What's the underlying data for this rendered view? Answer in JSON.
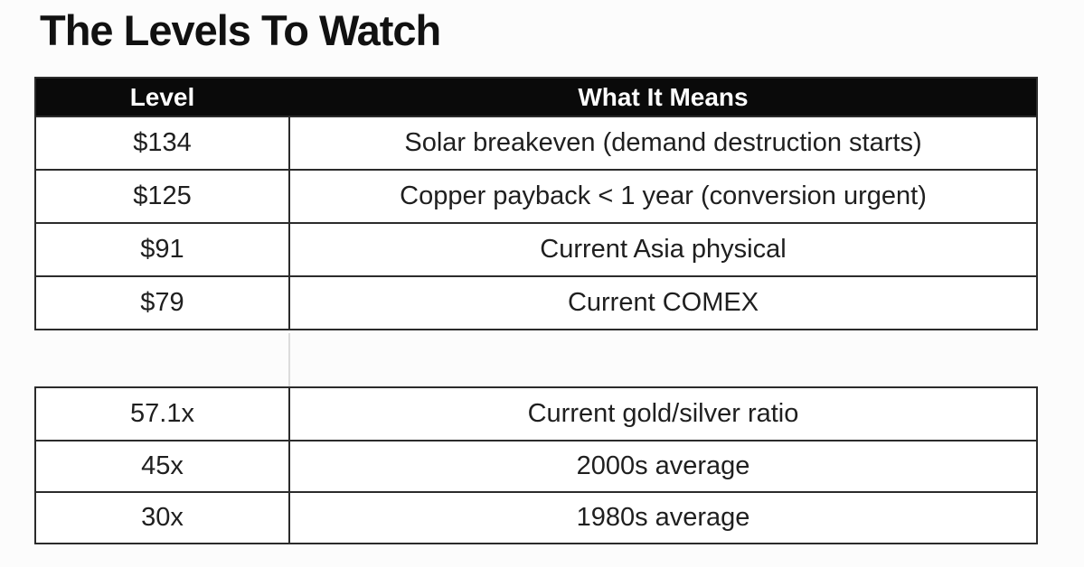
{
  "title": "The Levels To Watch",
  "price_table": {
    "headers": [
      "Level",
      "What It Means"
    ],
    "rows": [
      {
        "level": "$134",
        "meaning": "Solar breakeven (demand destruction starts)"
      },
      {
        "level": "$125",
        "meaning": "Copper payback < 1 year (conversion urgent)"
      },
      {
        "level": "$91",
        "meaning": "Current Asia physical"
      },
      {
        "level": "$79",
        "meaning": "Current COMEX"
      }
    ]
  },
  "ratio_table": {
    "rows": [
      {
        "level": "57.1x",
        "meaning": "Current gold/silver ratio"
      },
      {
        "level": "45x",
        "meaning": "2000s average"
      },
      {
        "level": "30x",
        "meaning": "1980s average"
      }
    ]
  },
  "colors": {
    "header_background": "#0a0a0a",
    "header_text": "#ffffff",
    "border": "#2b2b2b",
    "body_text": "#1f1f1f",
    "page_background": "#fcfcfc"
  }
}
